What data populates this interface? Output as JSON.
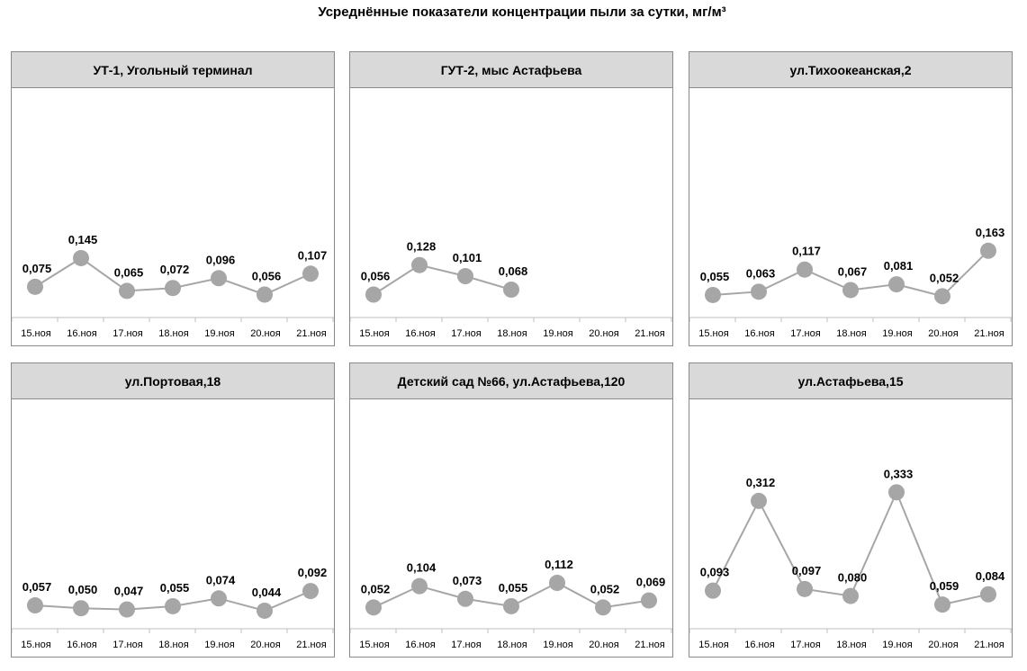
{
  "title": "Усреднённые показатели концентрации пыли за сутки, мг/м³",
  "chart_data": [
    {
      "type": "line",
      "title": "УТ-1, Угольный терминал",
      "categories": [
        "15.ноя",
        "16.ноя",
        "17.ноя",
        "18.ноя",
        "19.ноя",
        "20.ноя",
        "21.ноя"
      ],
      "values": [
        0.075,
        0.145,
        0.065,
        0.072,
        0.096,
        0.056,
        0.107
      ],
      "labels": [
        "0,075",
        "0,145",
        "0,065",
        "0,072",
        "0,096",
        "0,056",
        "0,107"
      ],
      "ylim": [
        0,
        0.56
      ]
    },
    {
      "type": "line",
      "title": "ГУТ-2, мыс Астафьева",
      "categories": [
        "15.ноя",
        "16.ноя",
        "17.ноя",
        "18.ноя",
        "19.ноя",
        "20.ноя",
        "21.ноя"
      ],
      "values": [
        0.056,
        0.128,
        0.101,
        0.068,
        null,
        null,
        null
      ],
      "labels": [
        "0,056",
        "0,128",
        "0,101",
        "0,068",
        null,
        null,
        null
      ],
      "ylim": [
        0,
        0.56
      ]
    },
    {
      "type": "line",
      "title": "ул.Тихоокеанская,2",
      "categories": [
        "15.ноя",
        "16.ноя",
        "17.ноя",
        "18.ноя",
        "19.ноя",
        "20.ноя",
        "21.ноя"
      ],
      "values": [
        0.055,
        0.063,
        0.117,
        0.067,
        0.081,
        0.052,
        0.163
      ],
      "labels": [
        "0,055",
        "0,063",
        "0,117",
        "0,067",
        "0,081",
        "0,052",
        "0,163"
      ],
      "ylim": [
        0,
        0.56
      ]
    },
    {
      "type": "line",
      "title": "ул.Портовая,18",
      "categories": [
        "15.ноя",
        "16.ноя",
        "17.ноя",
        "18.ноя",
        "19.ноя",
        "20.ноя",
        "21.ноя"
      ],
      "values": [
        0.057,
        0.05,
        0.047,
        0.055,
        0.074,
        0.044,
        0.092
      ],
      "labels": [
        "0,057",
        "0,050",
        "0,047",
        "0,055",
        "0,074",
        "0,044",
        "0,092"
      ],
      "ylim": [
        0,
        0.56
      ]
    },
    {
      "type": "line",
      "title": "Детский сад №66, ул.Астафьева,120",
      "categories": [
        "15.ноя",
        "16.ноя",
        "17.ноя",
        "18.ноя",
        "19.ноя",
        "20.ноя",
        "21.ноя"
      ],
      "values": [
        0.052,
        0.104,
        0.073,
        0.055,
        0.112,
        0.052,
        0.069
      ],
      "labels": [
        "0,052",
        "0,104",
        "0,073",
        "0,055",
        "0,112",
        "0,052",
        "0,069"
      ],
      "ylim": [
        0,
        0.56
      ]
    },
    {
      "type": "line",
      "title": "ул.Астафьева,15",
      "categories": [
        "15.ноя",
        "16.ноя",
        "17.ноя",
        "18.ноя",
        "19.ноя",
        "20.ноя",
        "21.ноя"
      ],
      "values": [
        0.093,
        0.312,
        0.097,
        0.08,
        0.333,
        0.059,
        0.084
      ],
      "labels": [
        "0,093",
        "0,312",
        "0,097",
        "0,080",
        "0,333",
        "0,059",
        "0,084"
      ],
      "ylim": [
        0,
        0.56
      ]
    }
  ],
  "colors": {
    "line": "#a6a6a6",
    "marker": "#a6a6a6",
    "header": "#d9d9d9"
  }
}
